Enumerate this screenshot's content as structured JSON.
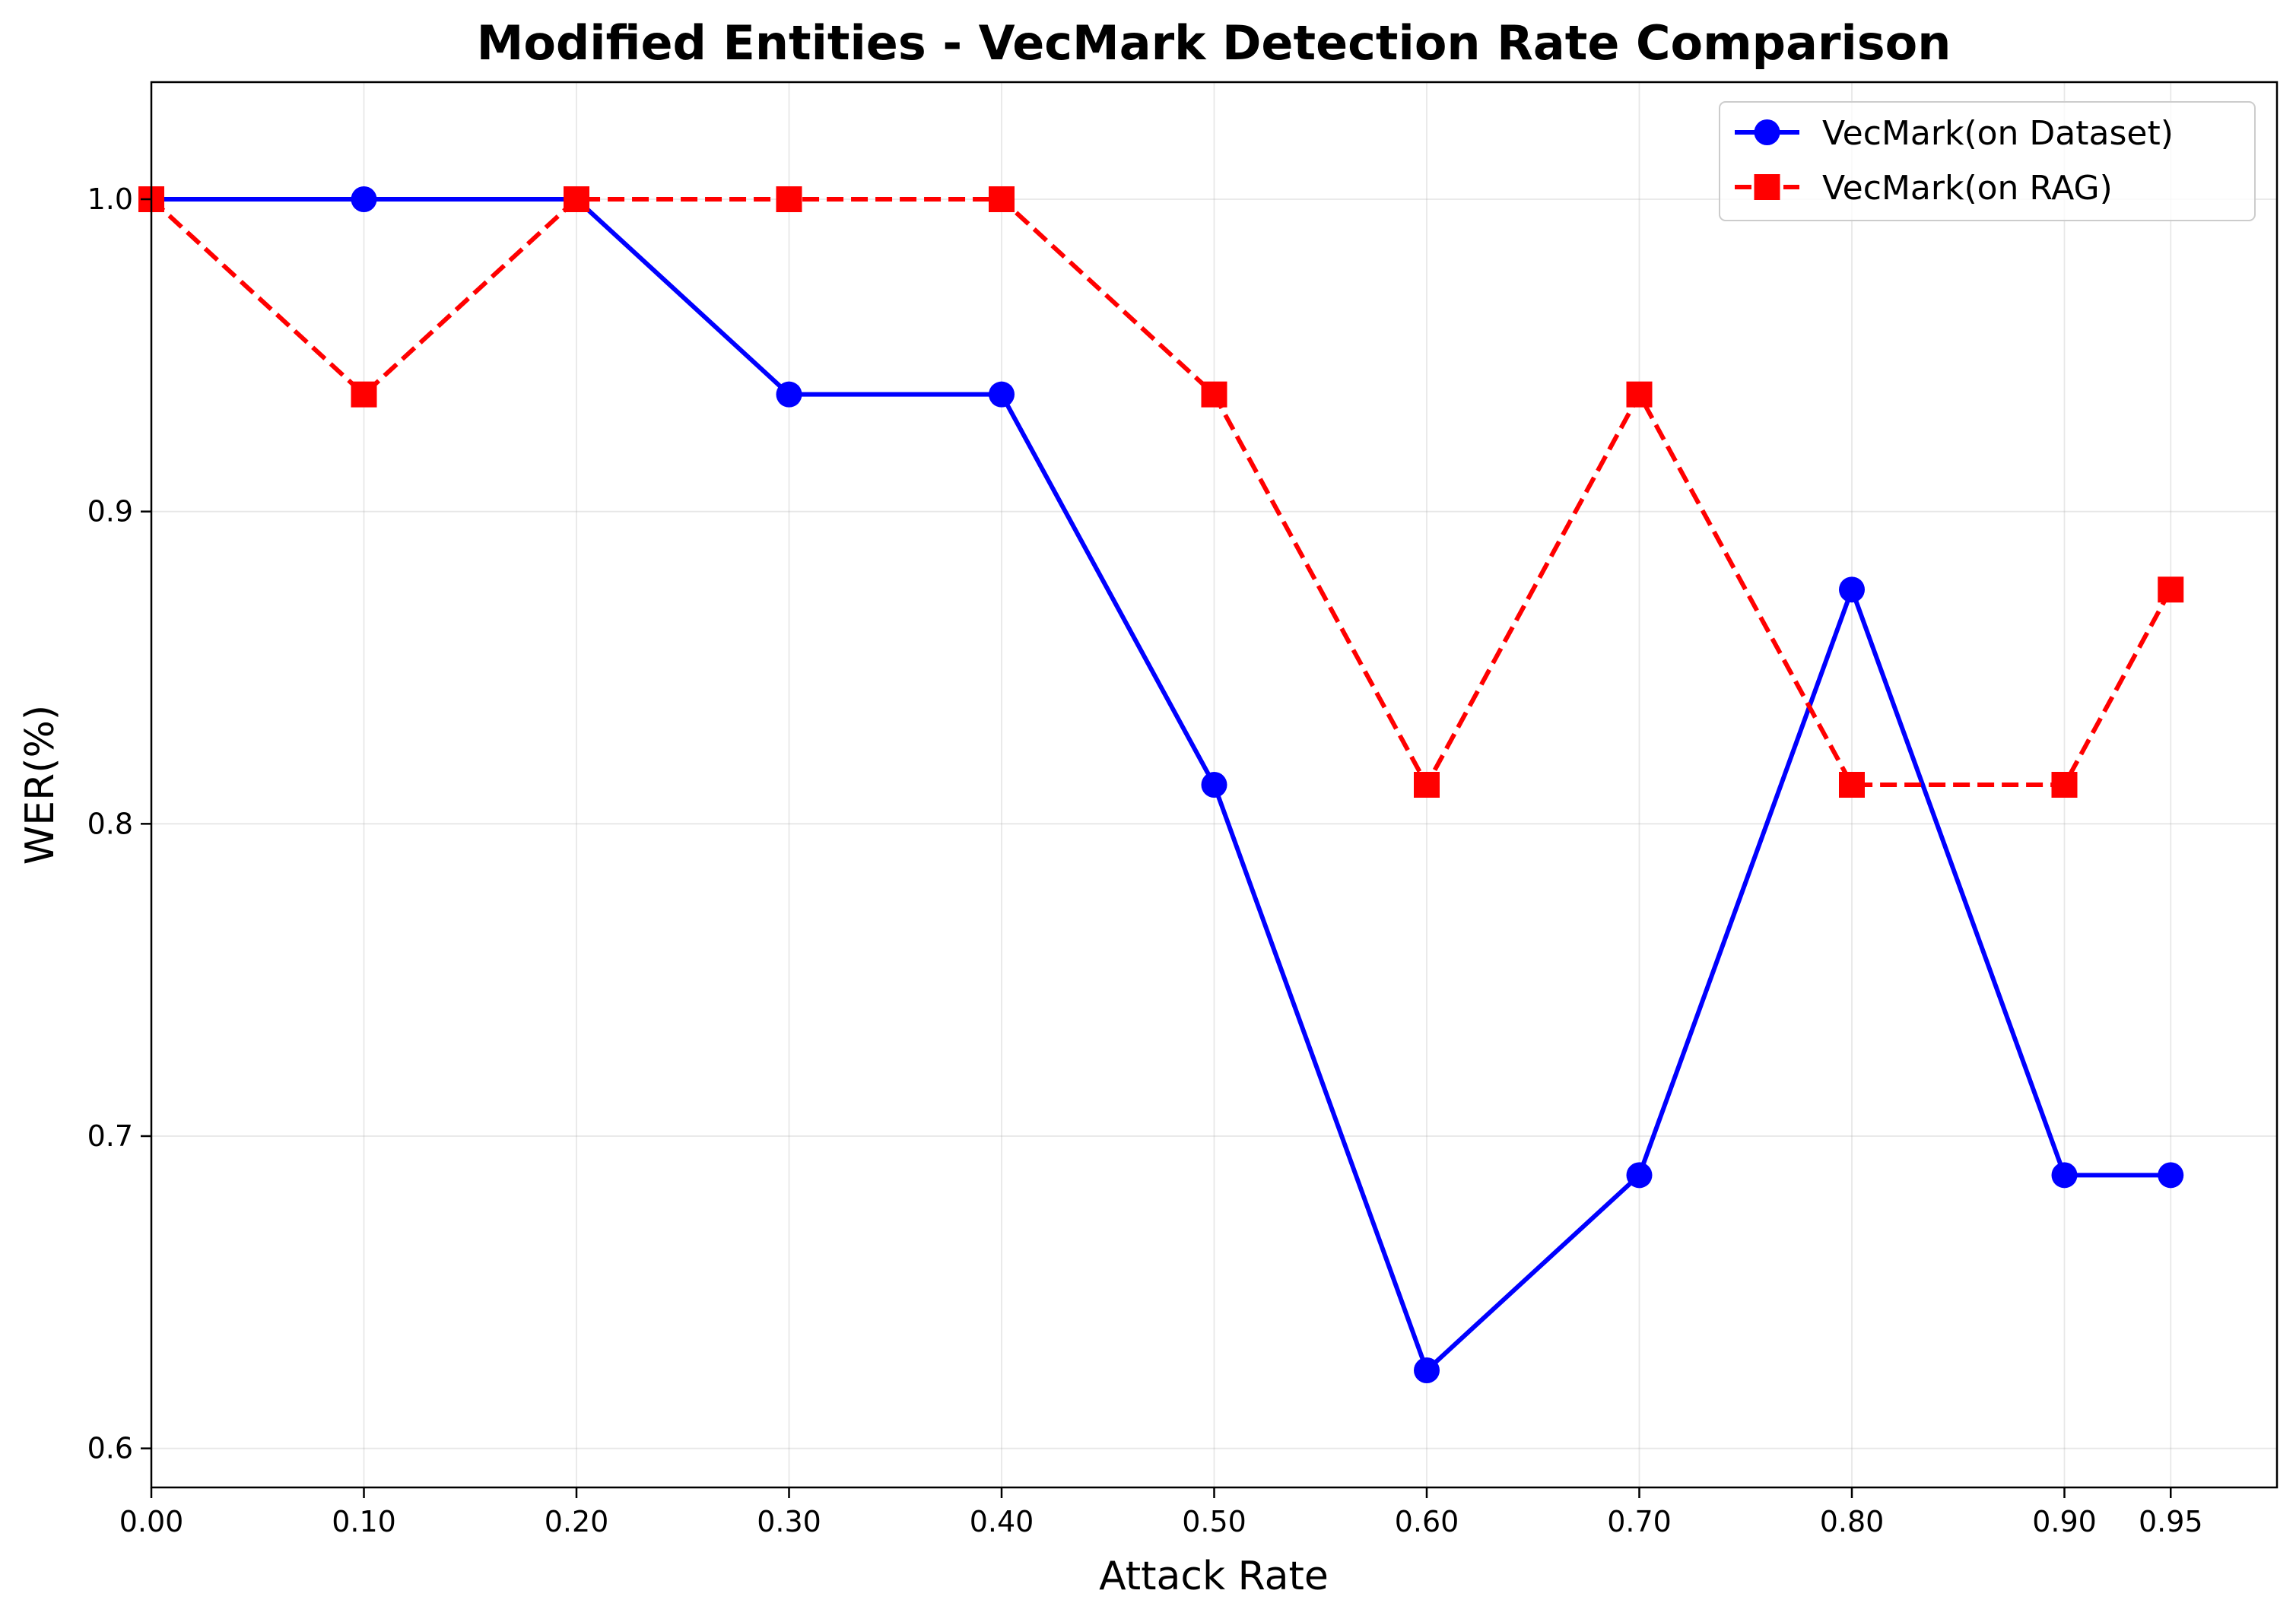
{
  "chart_data": {
    "type": "line",
    "title": "Modified Entities - VecMark Detection Rate Comparison",
    "xlabel": "Attack Rate",
    "ylabel": "WER(%)",
    "x": [
      0.0,
      0.1,
      0.2,
      0.3,
      0.4,
      0.5,
      0.6,
      0.7,
      0.8,
      0.9,
      0.95
    ],
    "x_tick_labels": [
      "0.00",
      "0.10",
      "0.20",
      "0.30",
      "0.40",
      "0.50",
      "0.60",
      "0.70",
      "0.80",
      "0.90",
      "0.95"
    ],
    "y_ticks": [
      0.6,
      0.7,
      0.8,
      0.9,
      1.0
    ],
    "y_tick_labels": [
      "0.6",
      "0.7",
      "0.8",
      "0.9",
      "1.0"
    ],
    "xlim": [
      0.0,
      1.0
    ],
    "ylim": [
      0.5875,
      1.0375
    ],
    "grid": true,
    "legend_position": "top-right",
    "series": [
      {
        "name": "VecMark(on Dataset)",
        "values": [
          1.0,
          1.0,
          1.0,
          0.9375,
          0.9375,
          0.8125,
          0.625,
          0.6875,
          0.875,
          0.6875,
          0.6875
        ],
        "color": "#0000ff",
        "line_style": "solid",
        "marker": "circle"
      },
      {
        "name": "VecMark(on RAG)",
        "values": [
          1.0,
          0.9375,
          1.0,
          1.0,
          1.0,
          0.9375,
          0.8125,
          0.9375,
          0.8125,
          0.8125,
          0.875
        ],
        "color": "#ff0000",
        "line_style": "dashed",
        "marker": "square"
      }
    ]
  }
}
